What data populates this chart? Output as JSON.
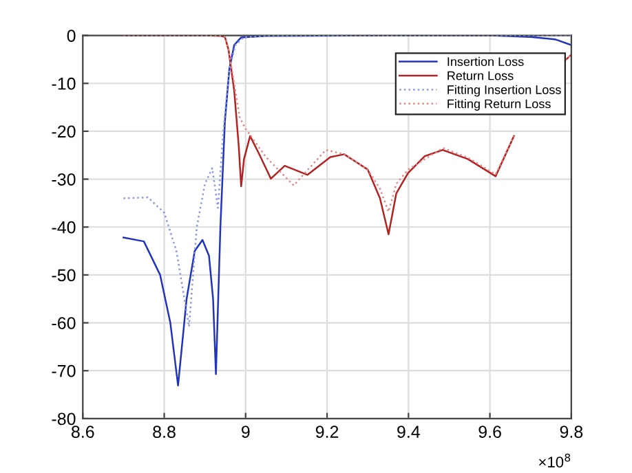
{
  "chart_data": {
    "type": "line",
    "xlim": [
      8.6,
      9.8
    ],
    "xticks": [
      8.6,
      8.8,
      {
        "value": 9.0,
        "label": "9"
      },
      9.2,
      9.4,
      9.6,
      9.8
    ],
    "ylim": [
      -80,
      0
    ],
    "yticks": [
      -80,
      -70,
      -60,
      -50,
      -40,
      -30,
      -20,
      -10,
      0
    ],
    "grid": true,
    "legend": "top right",
    "annotations": [
      "×10$^{8}$"
    ],
    "series": [
      {
        "name": "Insertion Loss",
        "color": "#2233bb",
        "line_style": "solid",
        "x": [
          8.7,
          8.75,
          8.79,
          8.815,
          8.834,
          8.855,
          8.875,
          8.894,
          8.91,
          8.92,
          8.927,
          8.938,
          8.949,
          8.96,
          8.972,
          8.989,
          9.05,
          9.3,
          9.6,
          9.7,
          9.76,
          9.8
        ],
        "values": [
          -42.2,
          -43,
          -50,
          -60,
          -73.1,
          -55,
          -45,
          -42.7,
          -46,
          -55,
          -70.7,
          -40,
          -18,
          -7,
          -2,
          -0.4,
          -0.1,
          0,
          0,
          -0.3,
          -0.8,
          -2
        ]
      },
      {
        "name": "Return Loss",
        "color": "#b22222",
        "line_style": "solid",
        "x": [
          8.7,
          8.9,
          8.94,
          8.949,
          8.958,
          8.972,
          8.983,
          8.989,
          8.996,
          9.011,
          9.034,
          9.062,
          9.096,
          9.152,
          9.208,
          9.242,
          9.3,
          9.33,
          9.351,
          9.37,
          9.399,
          9.44,
          9.484,
          9.546,
          9.614,
          9.659,
          9.715,
          9.785,
          9.8
        ],
        "values": [
          0,
          0,
          -0.1,
          -0.3,
          -3,
          -11.6,
          -23,
          -31.5,
          -25.8,
          -21,
          -24.9,
          -29.9,
          -27.2,
          -29.1,
          -25.4,
          -24.8,
          -28,
          -34,
          -41.5,
          -33,
          -28.7,
          -25.2,
          -23.9,
          -25.8,
          -29.4,
          -21,
          null,
          -5.2,
          -4
        ]
      },
      {
        "name": "Fitting Insertion Loss",
        "color": "#8899dd",
        "line_style": "dotted",
        "x": [
          8.7,
          8.76,
          8.8,
          8.83,
          8.861,
          8.88,
          8.9,
          8.918,
          8.932,
          8.945,
          8.96,
          8.975,
          8.995,
          9.05,
          9.5,
          9.8
        ],
        "values": [
          -34,
          -33.8,
          -37,
          -45,
          -60.8,
          -40,
          -31,
          -27.7,
          -36,
          -20,
          -7,
          -2,
          -0.4,
          -0.1,
          0,
          0
        ]
      },
      {
        "name": "Fitting Return Loss",
        "color": "#e08888",
        "line_style": "dotted",
        "x": [
          8.7,
          8.9,
          8.94,
          8.949,
          8.958,
          8.972,
          8.985,
          9.0,
          9.05,
          9.118,
          9.197,
          9.242,
          9.3,
          9.33,
          9.351,
          9.37,
          9.399,
          9.484,
          9.546,
          9.614,
          9.659,
          9.715,
          9.785,
          9.8
        ],
        "values": [
          0,
          0,
          -0.1,
          -0.3,
          -3,
          -10,
          -17,
          -19.5,
          -25.4,
          -31.3,
          -23.9,
          -24.8,
          -28,
          -32,
          -36.8,
          -31,
          -28,
          -23.5,
          -25.5,
          -29,
          -21,
          null,
          -5.2,
          -4
        ]
      }
    ]
  }
}
